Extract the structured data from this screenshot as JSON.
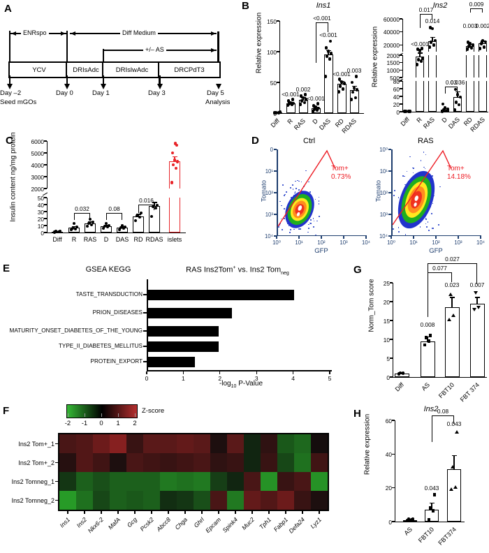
{
  "figure": {
    "panels": {
      "A": "A",
      "B": "B",
      "C": "C",
      "D": "D",
      "E": "E",
      "F": "F",
      "G": "G",
      "H": "H"
    }
  },
  "panelA": {
    "top_arrows": [
      {
        "label": "ENRspo"
      },
      {
        "label": "Diff Medium"
      },
      {
        "label": "+/– AS"
      }
    ],
    "boxes": [
      "YCV",
      "DRIsAdc",
      "DRIslwAdc",
      "DRCPdT3"
    ],
    "days": [
      {
        "label": "Day –2",
        "sub": "Seed mGOs"
      },
      {
        "label": "Day 0",
        "sub": ""
      },
      {
        "label": "Day 1",
        "sub": ""
      },
      {
        "label": "Day 3",
        "sub": ""
      },
      {
        "label": "Day 5",
        "sub": "Analysis"
      }
    ]
  },
  "chart_data": [
    {
      "id": "ins1",
      "type": "bar",
      "title": "Ins1",
      "ylabel": "Relative expression",
      "segments": [
        {
          "v0": 0,
          "v1": 150
        }
      ],
      "ticks": [
        [
          0,
          50,
          100,
          150
        ]
      ],
      "categories": [
        "Diff",
        "R",
        "RAS",
        "D",
        "DAS",
        "RD",
        "RDAS"
      ],
      "values": [
        1,
        16,
        22,
        8,
        95,
        48,
        38
      ],
      "errors": [
        0.3,
        2,
        3,
        2,
        7,
        4,
        6
      ],
      "dots": [
        [
          0.5,
          0.8,
          1,
          1.3
        ],
        [
          13,
          14,
          15,
          16,
          17,
          20,
          22
        ],
        [
          14,
          17,
          20,
          22,
          25,
          28,
          30
        ],
        [
          3,
          5,
          6,
          8,
          10,
          12,
          15
        ],
        [
          60,
          88,
          93,
          97,
          101,
          106,
          117
        ],
        [
          35,
          39,
          44,
          48,
          51,
          55
        ],
        [
          22,
          25,
          34,
          38,
          41,
          50,
          60
        ]
      ],
      "p_labels": [
        null,
        "<0.001",
        "0.002",
        "<0.001",
        "<0.001",
        "<0.001",
        "0.003"
      ],
      "p_at": [
        null,
        25,
        33,
        18,
        122,
        58,
        64
      ],
      "brackets": [
        {
          "from": "D",
          "to": "DAS",
          "label": "<0.001"
        }
      ]
    },
    {
      "id": "ins2",
      "type": "bar",
      "title": "Ins2",
      "ylabel": "Relative expression",
      "segments": [
        {
          "v0": 0,
          "v1": 80
        },
        {
          "v0": 500,
          "v1": 2000
        },
        {
          "v0": 10000,
          "v1": 60000
        }
      ],
      "ticks": [
        [
          0,
          20,
          40,
          60,
          80
        ],
        [
          500,
          1000,
          1500,
          2000
        ],
        [
          20000,
          40000,
          60000
        ]
      ],
      "categories": [
        "Diff",
        "R",
        "RAS",
        "D",
        "DAS",
        "RD",
        "RDAS"
      ],
      "values": [
        0.5,
        1900,
        26000,
        5,
        38,
        19000,
        23000
      ],
      "errors": [
        0.2,
        200,
        6000,
        3,
        14,
        2500,
        3000
      ],
      "dots": [
        [
          0.3,
          0.5,
          0.8,
          1
        ],
        [
          1350,
          1600,
          1700,
          1800,
          12000,
          13500,
          15000
        ],
        [
          17000,
          20000,
          24000,
          27000,
          45000,
          47000
        ],
        [
          1,
          2,
          4,
          6,
          10,
          20
        ],
        [
          5,
          18,
          25,
          38,
          45,
          58
        ],
        [
          14000,
          16000,
          18000,
          20000,
          22000,
          24000
        ],
        [
          15000,
          17000,
          22000,
          25000,
          27000
        ]
      ],
      "p_labels": [
        null,
        "<0.001",
        "0.014",
        null,
        "0.036",
        "0.003",
        "0.002"
      ],
      "p_at": [
        null,
        16000,
        52000,
        null,
        68,
        44000,
        44000
      ],
      "brackets": [
        {
          "from": "R",
          "to": "RAS",
          "label": "0.017"
        },
        {
          "from": "D",
          "to": "DAS",
          "label": "0.03"
        },
        {
          "from": "RD",
          "to": "RDAS",
          "label": "0.009"
        }
      ]
    },
    {
      "id": "insulin",
      "type": "bar",
      "title": "",
      "ylabel": "Insulin content ng/mg protein",
      "segments": [
        {
          "v0": 0,
          "v1": 50
        },
        {
          "v0": 2000,
          "v1": 6000
        }
      ],
      "ticks": [
        [
          0,
          10,
          20,
          30,
          40,
          50
        ],
        [
          2000,
          3000,
          4000,
          5000,
          6000
        ]
      ],
      "categories": [
        "Diff",
        "R",
        "RAS",
        "D",
        "DAS",
        "RD",
        "RDAS",
        "islets"
      ],
      "colors": [
        "#000000",
        "#000000",
        "#000000",
        "#000000",
        "#000000",
        "#000000",
        "#000000",
        "#e8252a"
      ],
      "values": [
        1,
        7,
        13,
        9,
        7,
        23,
        38,
        4300
      ],
      "errors": [
        0.3,
        1.5,
        2,
        1.5,
        1.5,
        3,
        5,
        400
      ],
      "dots": [
        [
          0.5,
          1,
          1.5,
          2
        ],
        [
          4,
          5,
          6,
          8,
          13
        ],
        [
          9,
          11,
          13,
          15,
          19
        ],
        [
          6,
          8,
          9,
          10,
          13
        ],
        [
          4,
          6,
          7,
          8,
          10
        ],
        [
          17,
          22,
          24,
          28
        ],
        [
          23,
          35,
          37,
          39
        ],
        [
          2500,
          3700,
          4000,
          4250,
          4400,
          5000,
          5650,
          5800
        ]
      ],
      "p_labels": [
        null,
        null,
        null,
        null,
        null,
        null,
        null,
        null
      ],
      "p_at": [
        null,
        null,
        null,
        null,
        null,
        null,
        null,
        null
      ],
      "brackets": [
        {
          "from": "R",
          "to": "RAS",
          "label": "0.032"
        },
        {
          "from": "D",
          "to": "DAS",
          "label": "0.08"
        },
        {
          "from": "RD",
          "to": "RDAS",
          "label": "0.016"
        }
      ]
    },
    {
      "id": "gsea",
      "type": "hbar",
      "title_left": "GSEA KEGG",
      "title_right": {
        "pre": "RAS Ins2Tom",
        "sup": "+",
        "mid": " vs. Ins2 Tom",
        "sub": "neg"
      },
      "xlabel": {
        "pre": "-log",
        "sub": "10",
        "post": " P-Value"
      },
      "categories": [
        "TASTE_TRANSDUCTION",
        "PRION_DISEASES",
        "MATURITY_ONSET_DIABETES_OF_THE_YOUNG",
        "TYPE_II_DIABETES_MELLITUS",
        "PROTEIN_EXPORT"
      ],
      "values": [
        4.0,
        2.3,
        1.95,
        1.95,
        1.3
      ],
      "xlim": [
        0,
        5
      ],
      "xticks": [
        0,
        1,
        2,
        3,
        4,
        5
      ]
    },
    {
      "id": "norm_tom",
      "type": "bar",
      "title": "",
      "ylabel": "Norm_Tom score",
      "segments": [
        {
          "v0": 0,
          "v1": 25
        }
      ],
      "ticks": [
        [
          0,
          5,
          10,
          15,
          20,
          25
        ]
      ],
      "categories": [
        "Diff",
        "AS",
        "FBT10",
        "FBT 374"
      ],
      "markers": [
        "circle",
        "square",
        "triup",
        "tridown"
      ],
      "values": [
        1,
        9.5,
        18.5,
        19.5
      ],
      "errors": [
        0.2,
        1.2,
        2.6,
        1.6
      ],
      "dots": [
        [
          0.9,
          1,
          1.1
        ],
        [
          8.5,
          9.5,
          10.5,
          11
        ],
        [
          15.2,
          16.3,
          21.8
        ],
        [
          17.9,
          18.3,
          22.3
        ]
      ],
      "p_labels": [
        null,
        "0.008",
        "0.023",
        "0.007"
      ],
      "p_at": [
        null,
        13,
        23.5,
        23.5
      ],
      "brackets": [
        {
          "from": "AS",
          "to": "FBT10",
          "label": "0.077"
        },
        {
          "from": "AS",
          "to": "FBT 374",
          "label": "0.027"
        }
      ]
    },
    {
      "id": "ins2_fbt",
      "type": "bar",
      "title": "Ins2",
      "ylabel": "Relative expression",
      "segments": [
        {
          "v0": 0,
          "v1": 60
        }
      ],
      "ticks": [
        [
          0,
          20,
          40,
          60
        ]
      ],
      "categories": [
        "AS",
        "FBT10",
        "FBT374"
      ],
      "markers": [
        "circle",
        "square",
        "triup"
      ],
      "values": [
        1,
        7,
        31
      ],
      "errors": [
        0.2,
        4,
        8
      ],
      "dots": [
        [
          0.7,
          1,
          1.3,
          1.6
        ],
        [
          1,
          6.5,
          8,
          16
        ],
        [
          19,
          20.5,
          32.5,
          53
        ]
      ],
      "p_labels": [
        null,
        "0.043",
        "0.043"
      ],
      "p_at": [
        null,
        18,
        56
      ],
      "brackets": [
        {
          "from": "FBT10",
          "to": "FBT374",
          "label": "0.08"
        }
      ]
    },
    {
      "id": "marker_heatmap",
      "type": "heatmap",
      "legend": {
        "label": "Z-score",
        "ticks": [
          "-2",
          "-1",
          "0",
          "1",
          "2"
        ],
        "min": -2,
        "max": 2
      },
      "rows": [
        "Ins2 Tom+_1",
        "Ins2 Tom+_2",
        "Ins2 Tomneg_1",
        "Ins2 Tomneg_2"
      ],
      "genes": [
        "Ins1",
        "Ins2",
        "Nkx6-2",
        "MafA",
        "Gcg",
        "Pcsk2",
        "Abcc8",
        "Chga",
        "Ghrl",
        "Epcam",
        "Spink4",
        "Muc2",
        "Tph1",
        "Fabp1",
        "Defa24",
        "Lyz1"
      ],
      "z": [
        [
          0.7,
          0.8,
          1.1,
          1.4,
          0.5,
          0.9,
          0.9,
          1.0,
          0.9,
          0.2,
          0.9,
          -0.3,
          0.4,
          -0.9,
          -1.1,
          0.1
        ],
        [
          0.3,
          0.8,
          0.6,
          0.2,
          0.7,
          0.6,
          0.5,
          0.6,
          0.7,
          0.4,
          0.5,
          -0.3,
          0.5,
          -0.7,
          -1.2,
          0.6
        ],
        [
          -0.5,
          -1.0,
          -0.8,
          -1.0,
          -1.0,
          -1.0,
          -1.3,
          -1.2,
          -1.3,
          -0.6,
          -0.3,
          0.7,
          -1.6,
          0.5,
          0.7,
          -1.6
        ],
        [
          -1.7,
          -1.2,
          -0.7,
          -1.0,
          -0.9,
          -1.0,
          -0.4,
          -0.5,
          -0.8,
          0.7,
          -1.3,
          1.0,
          0.8,
          1.1,
          0.5,
          0.2
        ]
      ]
    }
  ],
  "panelD": {
    "plots": [
      {
        "title": "Ctrl",
        "gate_name": "Tom+",
        "gate_pct": "0.73%",
        "xlabel": "GFP",
        "ylabel": "Tomato",
        "xticks": [
          "10⁰",
          "10¹",
          "10²",
          "10³",
          "10⁴"
        ],
        "yticks": [
          "10⁴",
          "10³",
          "10²",
          "10¹",
          "0"
        ]
      },
      {
        "title": "RAS",
        "gate_name": "Tom+",
        "gate_pct": "14.18%",
        "xlabel": "GFP",
        "ylabel": "Tomato",
        "xticks": [
          "10⁰",
          "10¹",
          "10²",
          "10³",
          "10⁴"
        ],
        "yticks": [
          "10⁴",
          "10³",
          "10²",
          "10¹",
          "10⁰"
        ]
      }
    ],
    "gate_color": "#ed1c24"
  }
}
